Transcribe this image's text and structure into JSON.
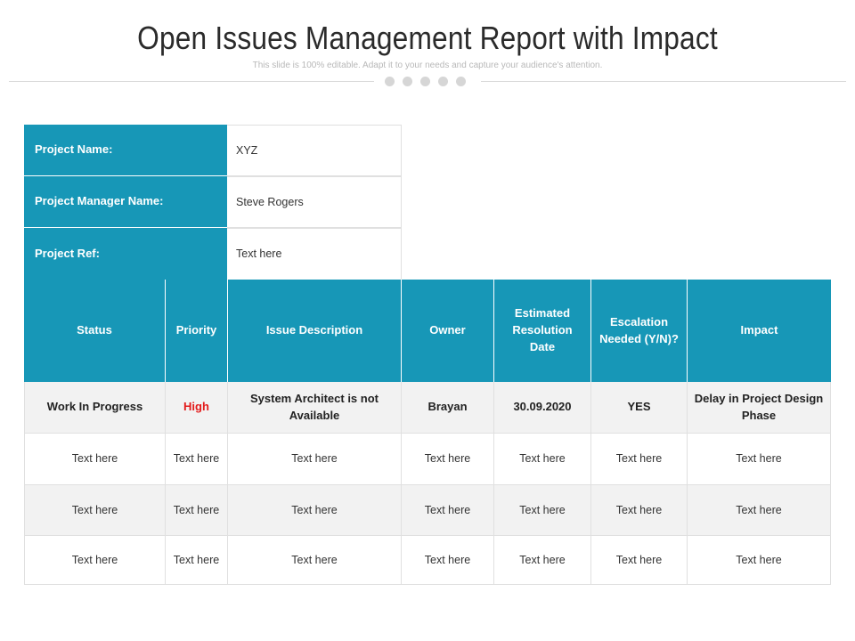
{
  "title": "Open Issues Management Report with Impact",
  "subtitle": "This slide is 100% editable. Adapt it to your needs and capture your audience's attention.",
  "colors": {
    "header_bg": "#1797b7",
    "priority_high": "#e31b1b",
    "row_alt": "#f2f2f2"
  },
  "project": {
    "name_label": "Project Name:",
    "name_value": "XYZ",
    "manager_label": "Project Manager Name:",
    "manager_value": "Steve Rogers",
    "ref_label": "Project Ref:",
    "ref_value": "Text here"
  },
  "table": {
    "headers": [
      "Status",
      "Priority",
      "Issue Description",
      "Owner",
      "Estimated Resolution Date",
      "Escalation Needed (Y/N)?",
      "Impact"
    ],
    "rows": [
      [
        "Work In Progress",
        "High",
        "System Architect is not Available",
        "Brayan",
        "30.09.2020",
        "YES",
        "Delay in Project Design Phase"
      ],
      [
        "Text here",
        "Text here",
        "Text here",
        "Text here",
        "Text here",
        "Text here",
        "Text here"
      ],
      [
        "Text here",
        "Text here",
        "Text here",
        "Text here",
        "Text here",
        "Text here",
        "Text here"
      ],
      [
        "Text here",
        "Text here",
        "Text here",
        "Text here",
        "Text here",
        "Text here",
        "Text here"
      ]
    ]
  }
}
